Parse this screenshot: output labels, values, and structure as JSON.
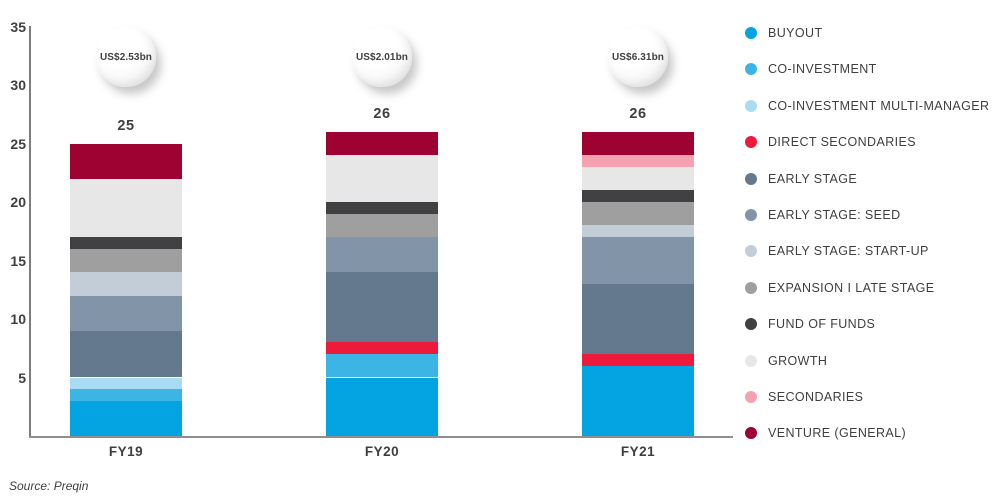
{
  "chart_data": {
    "type": "bar",
    "stacked": true,
    "title": "",
    "categories": [
      "FY19",
      "FY20",
      "FY21"
    ],
    "bar_totals": [
      25,
      26,
      26
    ],
    "bar_total_labels": [
      "25",
      "26",
      "26"
    ],
    "bubble_labels": [
      "US$2.53bn",
      "US$2.01bn",
      "US$6.31bn"
    ],
    "series": [
      {
        "name": "BUYOUT",
        "color": "#04a3e1",
        "values": [
          3,
          5,
          6
        ]
      },
      {
        "name": "CO-INVESTMENT",
        "color": "#3cb5e5",
        "values": [
          1,
          2,
          0
        ]
      },
      {
        "name": "CO-INVESTMENT MULTI-MANAGER",
        "color": "#a9dbf2",
        "values": [
          1,
          0,
          0
        ]
      },
      {
        "name": "DIRECT SECONDARIES",
        "color": "#ed1a3b",
        "values": [
          0,
          1,
          1
        ]
      },
      {
        "name": "EARLY STAGE",
        "color": "#64798e",
        "values": [
          4,
          6,
          6
        ]
      },
      {
        "name": "EARLY STAGE: SEED",
        "color": "#8295a8",
        "values": [
          3,
          3,
          4
        ]
      },
      {
        "name": "EARLY STAGE: START-UP",
        "color": "#c2cdd8",
        "values": [
          2,
          0,
          1
        ]
      },
      {
        "name": "EXPANSION I LATE STAGE",
        "color": "#9f9f9f",
        "values": [
          2,
          2,
          2
        ]
      },
      {
        "name": "FUND OF FUNDS",
        "color": "#414143",
        "values": [
          1,
          1,
          1
        ]
      },
      {
        "name": "GROWTH",
        "color": "#e8e7e7",
        "values": [
          5,
          4,
          2
        ]
      },
      {
        "name": "SECONDARIES",
        "color": "#f4a2b0",
        "values": [
          0,
          0,
          1
        ]
      },
      {
        "name": "VENTURE (GENERAL)",
        "color": "#9d0233",
        "values": [
          3,
          2,
          2
        ]
      }
    ],
    "ylim": [
      0,
      35
    ],
    "yticks": [
      5,
      10,
      15,
      20,
      25,
      30,
      35
    ],
    "xlabel": "",
    "ylabel": "",
    "grid": false,
    "legend_position": "right",
    "stack_order": "series order, bottom to top"
  },
  "source": "Source: Preqin",
  "colors": {
    "text": "#3f3f3f",
    "axis": "#7d7d7d",
    "background": "#ffffff"
  }
}
